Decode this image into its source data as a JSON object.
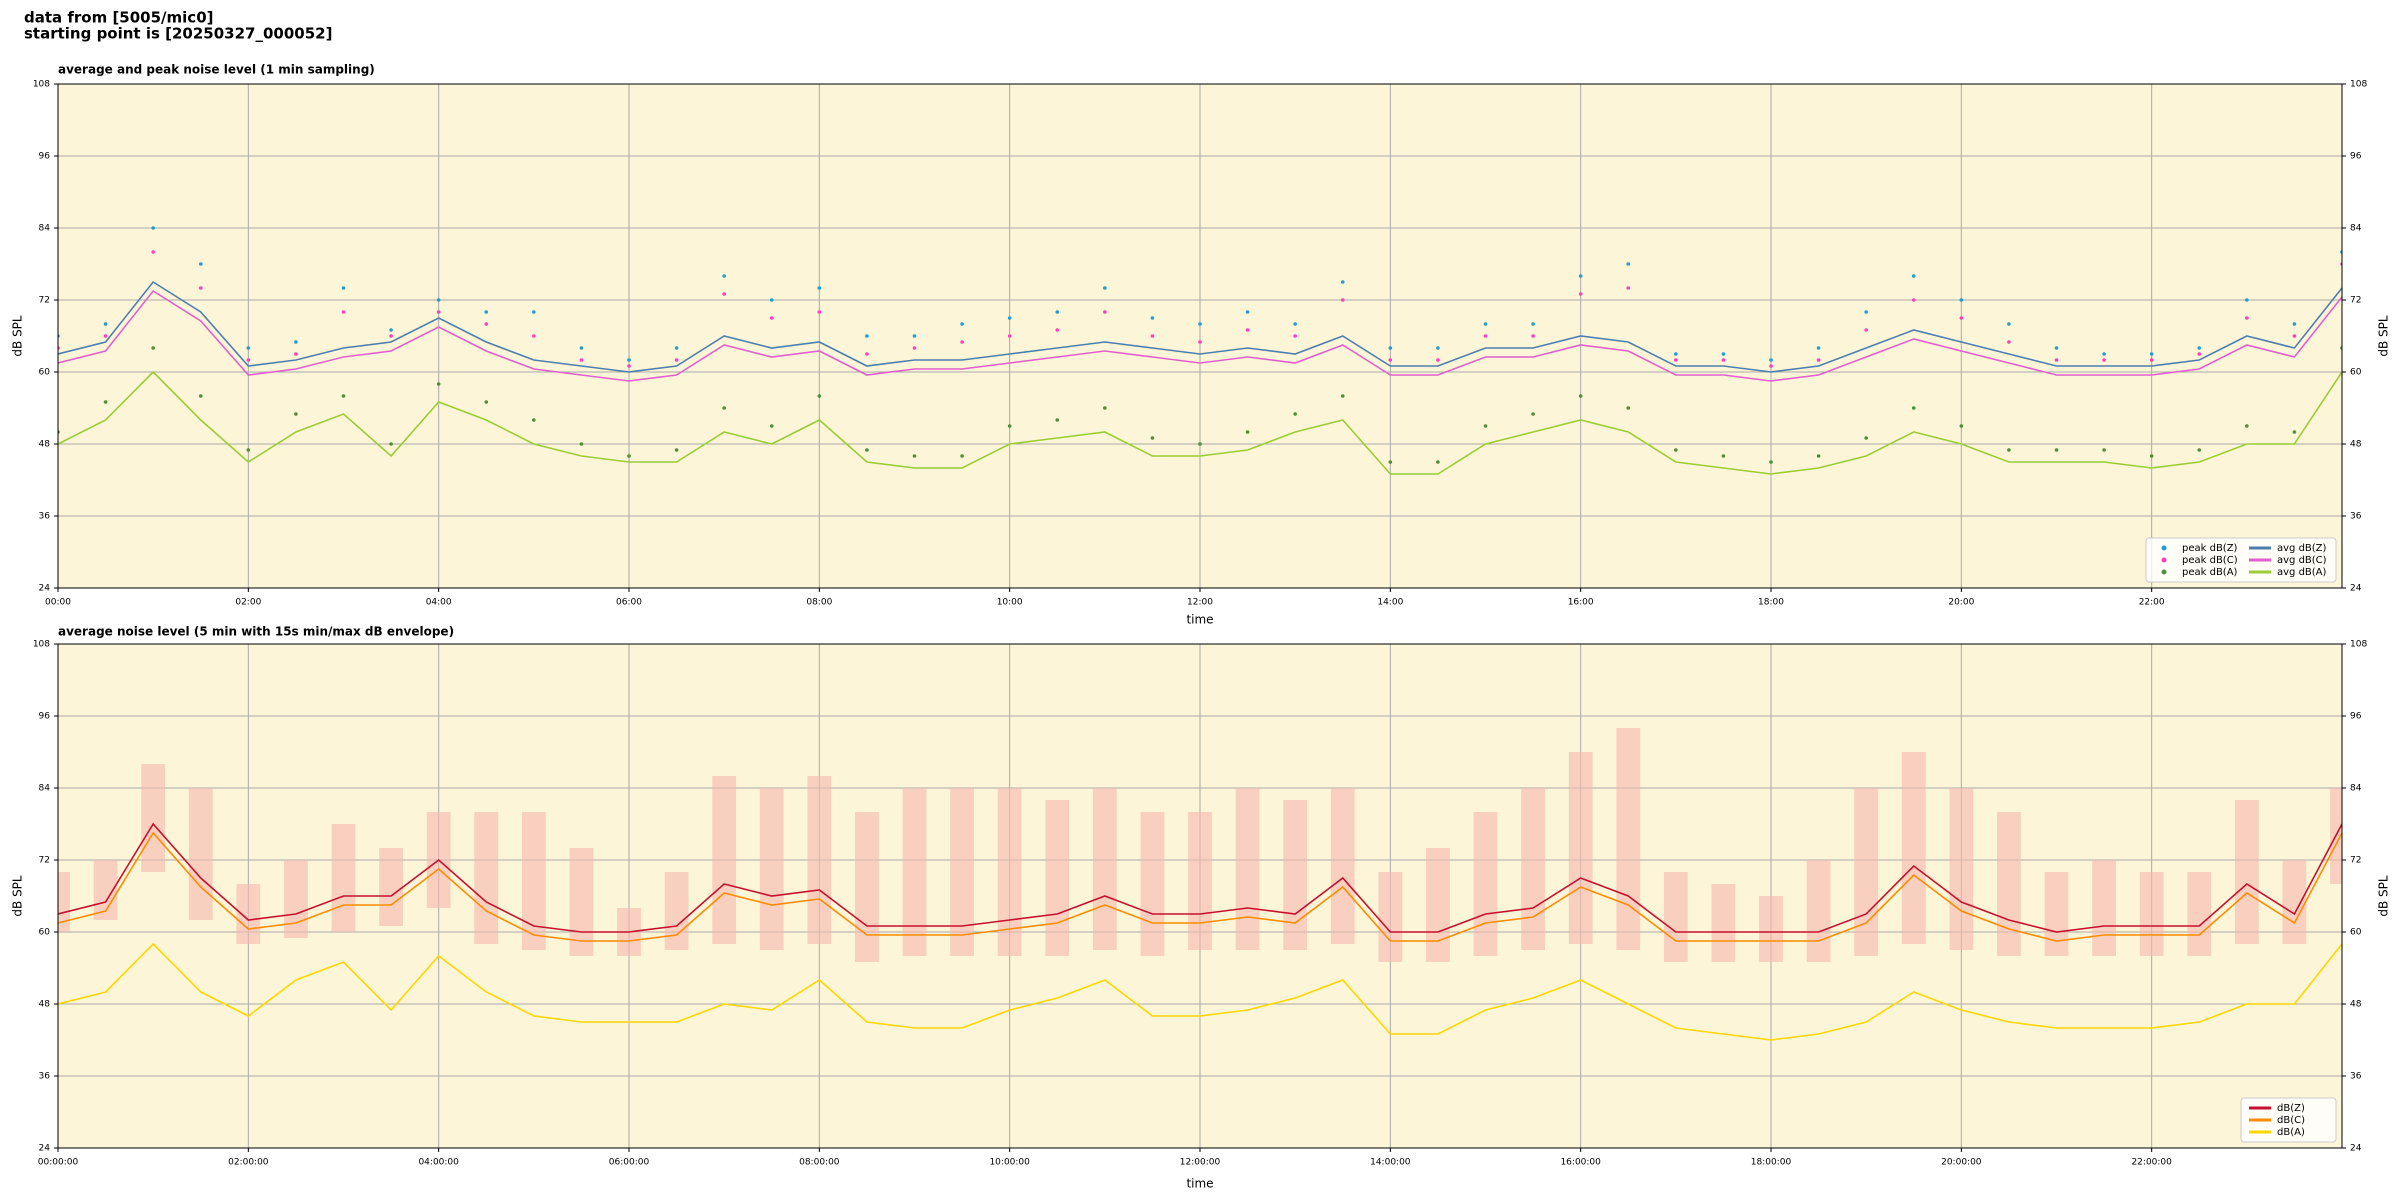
{
  "header": {
    "line1": "data from [5005/mic0]",
    "line2": "starting point is [20250327_000052]"
  },
  "chart_data": [
    {
      "type": "line",
      "title": "average and peak noise level (1 min sampling)",
      "xlabel": "time",
      "ylabel": "dB SPL",
      "background": "#fdf5d8",
      "grid": true,
      "legend": "lower right",
      "legend_columns": 2,
      "xlim": [
        0,
        24
      ],
      "ylim": [
        24,
        108
      ],
      "xticks": [
        {
          "value": 0,
          "label": "00:00"
        },
        {
          "value": 2,
          "label": "02:00"
        },
        {
          "value": 4,
          "label": "04:00"
        },
        {
          "value": 6,
          "label": "06:00"
        },
        {
          "value": 8,
          "label": "08:00"
        },
        {
          "value": 10,
          "label": "10:00"
        },
        {
          "value": 12,
          "label": "12:00"
        },
        {
          "value": 14,
          "label": "14:00"
        },
        {
          "value": 16,
          "label": "16:00"
        },
        {
          "value": 18,
          "label": "18:00"
        },
        {
          "value": 20,
          "label": "20:00"
        },
        {
          "value": 22,
          "label": "22:00"
        }
      ],
      "yticks": [
        24,
        36,
        48,
        60,
        72,
        84,
        96,
        108
      ],
      "x": [
        0,
        0.5,
        1,
        1.5,
        2,
        2.5,
        3,
        3.5,
        4,
        4.5,
        5,
        5.5,
        6,
        6.5,
        7,
        7.5,
        8,
        8.5,
        9,
        9.5,
        10,
        10.5,
        11,
        11.5,
        12,
        12.5,
        13,
        13.5,
        14,
        14.5,
        15,
        15.5,
        16,
        16.5,
        17,
        17.5,
        18,
        18.5,
        19,
        19.5,
        20,
        20.5,
        21,
        21.5,
        22,
        22.5,
        23,
        23.5,
        24
      ],
      "series": [
        {
          "name": "peak dB(Z)",
          "color": "#1f9ed8",
          "style": "points",
          "values": [
            66,
            68,
            84,
            78,
            64,
            65,
            74,
            67,
            72,
            70,
            70,
            64,
            62,
            64,
            76,
            72,
            74,
            66,
            66,
            68,
            69,
            70,
            74,
            69,
            68,
            70,
            68,
            75,
            64,
            64,
            68,
            68,
            76,
            78,
            63,
            63,
            62,
            64,
            70,
            76,
            72,
            68,
            64,
            63,
            63,
            64,
            72,
            68,
            80
          ]
        },
        {
          "name": "peak dB(C)",
          "color": "#ff3fbf",
          "style": "points",
          "values": [
            64,
            66,
            80,
            74,
            62,
            63,
            70,
            66,
            70,
            68,
            66,
            62,
            61,
            62,
            73,
            69,
            70,
            63,
            64,
            65,
            66,
            67,
            70,
            66,
            65,
            67,
            66,
            72,
            62,
            62,
            66,
            66,
            73,
            74,
            62,
            62,
            61,
            62,
            67,
            72,
            69,
            65,
            62,
            62,
            62,
            63,
            69,
            66,
            78
          ]
        },
        {
          "name": "peak dB(A)",
          "color": "#4e8f3a",
          "style": "points",
          "values": [
            50,
            55,
            64,
            56,
            47,
            53,
            56,
            48,
            58,
            55,
            52,
            48,
            46,
            47,
            54,
            51,
            56,
            47,
            46,
            46,
            51,
            52,
            54,
            49,
            48,
            50,
            53,
            56,
            45,
            45,
            51,
            53,
            56,
            54,
            47,
            46,
            45,
            46,
            49,
            54,
            51,
            47,
            47,
            47,
            46,
            47,
            51,
            50,
            64
          ]
        },
        {
          "name": "avg dB(Z)",
          "color": "#4c7fb0",
          "style": "line",
          "values": [
            63,
            65,
            75,
            70,
            61,
            62,
            64,
            65,
            69,
            65,
            62,
            61,
            60,
            61,
            66,
            64,
            65,
            61,
            62,
            62,
            63,
            64,
            65,
            64,
            63,
            64,
            63,
            66,
            61,
            61,
            64,
            64,
            66,
            65,
            61,
            61,
            60,
            61,
            64,
            67,
            65,
            63,
            61,
            61,
            61,
            62,
            66,
            64,
            74
          ]
        },
        {
          "name": "avg dB(C)",
          "color": "#e060d0",
          "style": "line",
          "values": [
            61.5,
            63.5,
            73.5,
            68.5,
            59.5,
            60.5,
            62.5,
            63.5,
            67.5,
            63.5,
            60.5,
            59.5,
            58.5,
            59.5,
            64.5,
            62.5,
            63.5,
            59.5,
            60.5,
            60.5,
            61.5,
            62.5,
            63.5,
            62.5,
            61.5,
            62.5,
            61.5,
            64.5,
            59.5,
            59.5,
            62.5,
            62.5,
            64.5,
            63.5,
            59.5,
            59.5,
            58.5,
            59.5,
            62.5,
            65.5,
            63.5,
            61.5,
            59.5,
            59.5,
            59.5,
            60.5,
            64.5,
            62.5,
            72.5
          ]
        },
        {
          "name": "avg dB(A)",
          "color": "#9acd32",
          "style": "line",
          "values": [
            48,
            52,
            60,
            52,
            45,
            50,
            53,
            46,
            55,
            52,
            48,
            46,
            45,
            45,
            50,
            48,
            52,
            45,
            44,
            44,
            48,
            49,
            50,
            46,
            46,
            47,
            50,
            52,
            43,
            43,
            48,
            50,
            52,
            50,
            45,
            44,
            43,
            44,
            46,
            50,
            48,
            45,
            45,
            45,
            44,
            45,
            48,
            48,
            60
          ]
        }
      ]
    },
    {
      "type": "line",
      "title": "average noise level (5 min with 15s min/max dB envelope)",
      "xlabel": "time",
      "ylabel": "dB SPL",
      "background": "#fdf5d8",
      "grid": true,
      "legend": "lower right",
      "legend_columns": 1,
      "xlim": [
        0,
        24
      ],
      "ylim": [
        24,
        108
      ],
      "xticks": [
        {
          "value": 0,
          "label": "00:00:00"
        },
        {
          "value": 2,
          "label": "02:00:00"
        },
        {
          "value": 4,
          "label": "04:00:00"
        },
        {
          "value": 6,
          "label": "06:00:00"
        },
        {
          "value": 8,
          "label": "08:00:00"
        },
        {
          "value": 10,
          "label": "10:00:00"
        },
        {
          "value": 12,
          "label": "12:00:00"
        },
        {
          "value": 14,
          "label": "14:00:00"
        },
        {
          "value": 16,
          "label": "16:00:00"
        },
        {
          "value": 18,
          "label": "18:00:00"
        },
        {
          "value": 20,
          "label": "20:00:00"
        },
        {
          "value": 22,
          "label": "22:00:00"
        }
      ],
      "yticks": [
        24,
        36,
        48,
        60,
        72,
        84,
        96,
        108
      ],
      "x": [
        0,
        0.5,
        1,
        1.5,
        2,
        2.5,
        3,
        3.5,
        4,
        4.5,
        5,
        5.5,
        6,
        6.5,
        7,
        7.5,
        8,
        8.5,
        9,
        9.5,
        10,
        10.5,
        11,
        11.5,
        12,
        12.5,
        13,
        13.5,
        14,
        14.5,
        15,
        15.5,
        16,
        16.5,
        17,
        17.5,
        18,
        18.5,
        19,
        19.5,
        20,
        20.5,
        21,
        21.5,
        22,
        22.5,
        23,
        23.5,
        24
      ],
      "envelope": {
        "color": "#f6b8b0",
        "low": [
          60,
          62,
          70,
          62,
          58,
          59,
          60,
          61,
          64,
          58,
          57,
          56,
          56,
          57,
          58,
          57,
          58,
          55,
          56,
          56,
          56,
          56,
          57,
          56,
          57,
          57,
          57,
          58,
          55,
          55,
          56,
          57,
          58,
          57,
          55,
          55,
          55,
          55,
          56,
          58,
          57,
          56,
          56,
          56,
          56,
          56,
          58,
          58,
          68
        ],
        "high": [
          70,
          72,
          88,
          84,
          68,
          72,
          78,
          74,
          80,
          80,
          80,
          74,
          64,
          70,
          86,
          84,
          86,
          80,
          84,
          84,
          84,
          82,
          84,
          80,
          80,
          84,
          82,
          84,
          70,
          74,
          80,
          84,
          90,
          94,
          70,
          68,
          66,
          72,
          84,
          90,
          84,
          80,
          70,
          72,
          70,
          70,
          82,
          72,
          84
        ]
      },
      "series": [
        {
          "name": "dB(Z)",
          "color": "#c8102e",
          "style": "line",
          "values": [
            63,
            65,
            78,
            69,
            62,
            63,
            66,
            66,
            72,
            65,
            61,
            60,
            60,
            61,
            68,
            66,
            67,
            61,
            61,
            61,
            62,
            63,
            66,
            63,
            63,
            64,
            63,
            69,
            60,
            60,
            63,
            64,
            69,
            66,
            60,
            60,
            60,
            60,
            63,
            71,
            65,
            62,
            60,
            61,
            61,
            61,
            68,
            63,
            78
          ]
        },
        {
          "name": "dB(C)",
          "color": "#ff8c00",
          "style": "line",
          "values": [
            61.5,
            63.5,
            76.5,
            67.5,
            60.5,
            61.5,
            64.5,
            64.5,
            70.5,
            63.5,
            59.5,
            58.5,
            58.5,
            59.5,
            66.5,
            64.5,
            65.5,
            59.5,
            59.5,
            59.5,
            60.5,
            61.5,
            64.5,
            61.5,
            61.5,
            62.5,
            61.5,
            67.5,
            58.5,
            58.5,
            61.5,
            62.5,
            67.5,
            64.5,
            58.5,
            58.5,
            58.5,
            58.5,
            61.5,
            69.5,
            63.5,
            60.5,
            58.5,
            59.5,
            59.5,
            59.5,
            66.5,
            61.5,
            76.5
          ]
        },
        {
          "name": "dB(A)",
          "color": "#ffd700",
          "style": "line",
          "values": [
            48,
            50,
            58,
            50,
            46,
            52,
            55,
            47,
            56,
            50,
            46,
            45,
            45,
            45,
            48,
            47,
            52,
            45,
            44,
            44,
            47,
            49,
            52,
            46,
            46,
            47,
            49,
            52,
            43,
            43,
            47,
            49,
            52,
            48,
            44,
            43,
            42,
            43,
            45,
            50,
            47,
            45,
            44,
            44,
            44,
            45,
            48,
            48,
            58
          ]
        }
      ]
    }
  ]
}
